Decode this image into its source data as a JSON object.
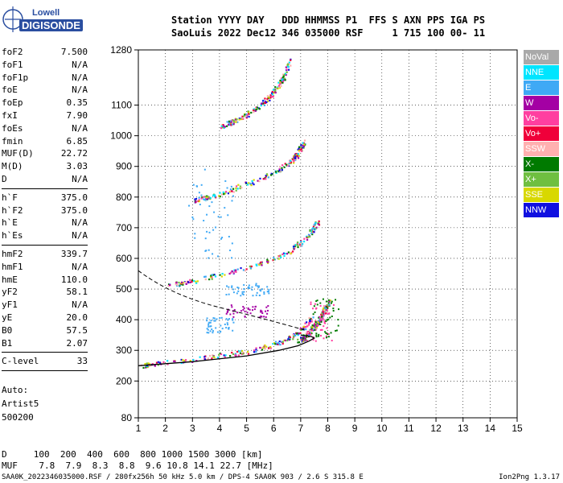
{
  "logo": {
    "line1": "Lowell",
    "line2": "DIGISONDE"
  },
  "header": {
    "line1": "Station YYYY DAY   DDD HHMMSS P1  FFS S AXN PPS IGA PS",
    "line2": "SaoLuis 2022 Dec12 346 035000 RSF     1 715 100 00- 11"
  },
  "params": [
    {
      "name": "foF2",
      "value": "7.500"
    },
    {
      "name": "foF1",
      "value": "N/A"
    },
    {
      "name": "foF1p",
      "value": "N/A"
    },
    {
      "name": "foE",
      "value": "N/A"
    },
    {
      "name": "foEp",
      "value": "0.35"
    },
    {
      "name": "fxI",
      "value": "7.90"
    },
    {
      "name": "foEs",
      "value": "N/A"
    },
    {
      "name": "fmin",
      "value": "6.85"
    },
    {
      "name": "MUF(D)",
      "value": "22.72"
    },
    {
      "name": "M(D)",
      "value": "3.03"
    },
    {
      "name": "D",
      "value": "N/A"
    },
    {
      "name": "h`F",
      "value": "375.0"
    },
    {
      "name": "h`F2",
      "value": "375.0"
    },
    {
      "name": "h`E",
      "value": "N/A"
    },
    {
      "name": "h`Es",
      "value": "N/A"
    },
    {
      "name": "hmF2",
      "value": "339.7"
    },
    {
      "name": "hmF1",
      "value": "N/A"
    },
    {
      "name": "hmE",
      "value": "110.0"
    },
    {
      "name": "yF2",
      "value": "58.1"
    },
    {
      "name": "yF1",
      "value": "N/A"
    },
    {
      "name": "yE",
      "value": "20.0"
    },
    {
      "name": "B0",
      "value": "57.5"
    },
    {
      "name": "B1",
      "value": "2.07"
    },
    {
      "name": "C-level",
      "value": "33"
    }
  ],
  "param_groups": [
    11,
    4,
    8,
    1
  ],
  "auto": {
    "line1": "Auto:",
    "line2": "Artist5",
    "line3": "500200"
  },
  "legend": [
    {
      "label": "NoVal",
      "color": "#a9a9a9",
      "text": "#ffffff"
    },
    {
      "label": "NNE",
      "color": "#00e5ff",
      "text": "#ffffff"
    },
    {
      "label": "E",
      "color": "#3fa9f5",
      "text": "#ffffff"
    },
    {
      "label": "W",
      "color": "#a400a4",
      "text": "#ffffff"
    },
    {
      "label": "Vo-",
      "color": "#ff3fa0",
      "text": "#ffffff"
    },
    {
      "label": "Vo+",
      "color": "#f0003a",
      "text": "#ffffff"
    },
    {
      "label": "SSW",
      "color": "#ffb0b0",
      "text": "#ffffff"
    },
    {
      "label": "X-",
      "color": "#007a00",
      "text": "#ffffff"
    },
    {
      "label": "X+",
      "color": "#6fbf40",
      "text": "#ffffff"
    },
    {
      "label": "SSE",
      "color": "#d8d800",
      "text": "#ffffff"
    },
    {
      "label": "NNW",
      "color": "#1010e0",
      "text": "#ffffff"
    }
  ],
  "bottom": {
    "d_line": "D     100  200  400  600  800 1000 1500 3000 [km]",
    "muf_line": "MUF    7.8  7.9  8.3  8.8  9.6 10.8 14.1 22.7 [MHz]"
  },
  "footer": {
    "left": "SAA0K_2022346035000.RSF / 280fx256h 50 kHz 5.0 km / DPS-4 SAA0K 903 / 2.6 S 315.8 E",
    "right": "Ion2Png 1.3.17"
  },
  "chart_data": {
    "type": "scatter",
    "title": "",
    "xlabel": "",
    "ylabel": "",
    "xlim": [
      1,
      15
    ],
    "ylim": [
      80,
      1280
    ],
    "xticks": [
      1,
      2,
      3,
      4,
      5,
      6,
      7,
      8,
      9,
      10,
      11,
      12,
      13,
      14,
      15
    ],
    "yticks": [
      80,
      200,
      300,
      400,
      500,
      600,
      700,
      800,
      900,
      1000,
      1100,
      1280
    ],
    "grid": true,
    "echo_traces": [
      {
        "name": "1st hop",
        "x": [
          1.0,
          2.0,
          3.0,
          4.0,
          5.0,
          5.8,
          6.4,
          6.9,
          7.2,
          7.4
        ],
        "y": [
          250,
          262,
          272,
          285,
          298,
          315,
          335,
          360,
          385,
          410
        ]
      },
      {
        "name": "2nd hop",
        "x": [
          2.0,
          3.0,
          4.0,
          5.0,
          6.0,
          6.6,
          7.0,
          7.4,
          7.6
        ],
        "y": [
          512,
          528,
          548,
          572,
          600,
          628,
          655,
          690,
          720
        ]
      },
      {
        "name": "3rd hop",
        "x": [
          3.0,
          4.0,
          5.0,
          6.0,
          6.6,
          6.9,
          7.1
        ],
        "y": [
          790,
          810,
          845,
          880,
          915,
          945,
          985
        ]
      },
      {
        "name": "4th hop",
        "x": [
          4.0,
          4.8,
          5.4,
          5.9,
          6.3,
          6.6
        ],
        "y": [
          1030,
          1060,
          1095,
          1135,
          1185,
          1250
        ]
      },
      {
        "name": "X trace",
        "x": [
          6.9,
          7.2,
          7.5,
          7.8,
          8.0
        ],
        "y": [
          330,
          350,
          380,
          420,
          460
        ]
      }
    ],
    "profile_fit": {
      "x": [
        1.0,
        3.0,
        5.0,
        6.2,
        6.9,
        7.3,
        7.5,
        7.4,
        7.0
      ],
      "y": [
        250,
        263,
        282,
        300,
        315,
        330,
        340,
        345,
        350
      ]
    },
    "scatter_clusters": [
      {
        "x": [
          3.5,
          4.5
        ],
        "y": [
          360,
          410
        ],
        "color": "#3fa9f5"
      },
      {
        "x": [
          4.2,
          5.8
        ],
        "y": [
          480,
          520
        ],
        "color": "#3fa9f5"
      },
      {
        "x": [
          4.2,
          5.8
        ],
        "y": [
          410,
          450
        ],
        "color": "#a400a4"
      },
      {
        "x": [
          7.2,
          8.2
        ],
        "y": [
          330,
          460
        ],
        "color": "#ff3fa0"
      },
      {
        "x": [
          7.4,
          8.4
        ],
        "y": [
          340,
          470
        ],
        "color": "#007a00"
      },
      {
        "x": [
          2.8,
          4.5
        ],
        "y": [
          600,
          900
        ],
        "color": "#3fa9f5"
      }
    ]
  }
}
